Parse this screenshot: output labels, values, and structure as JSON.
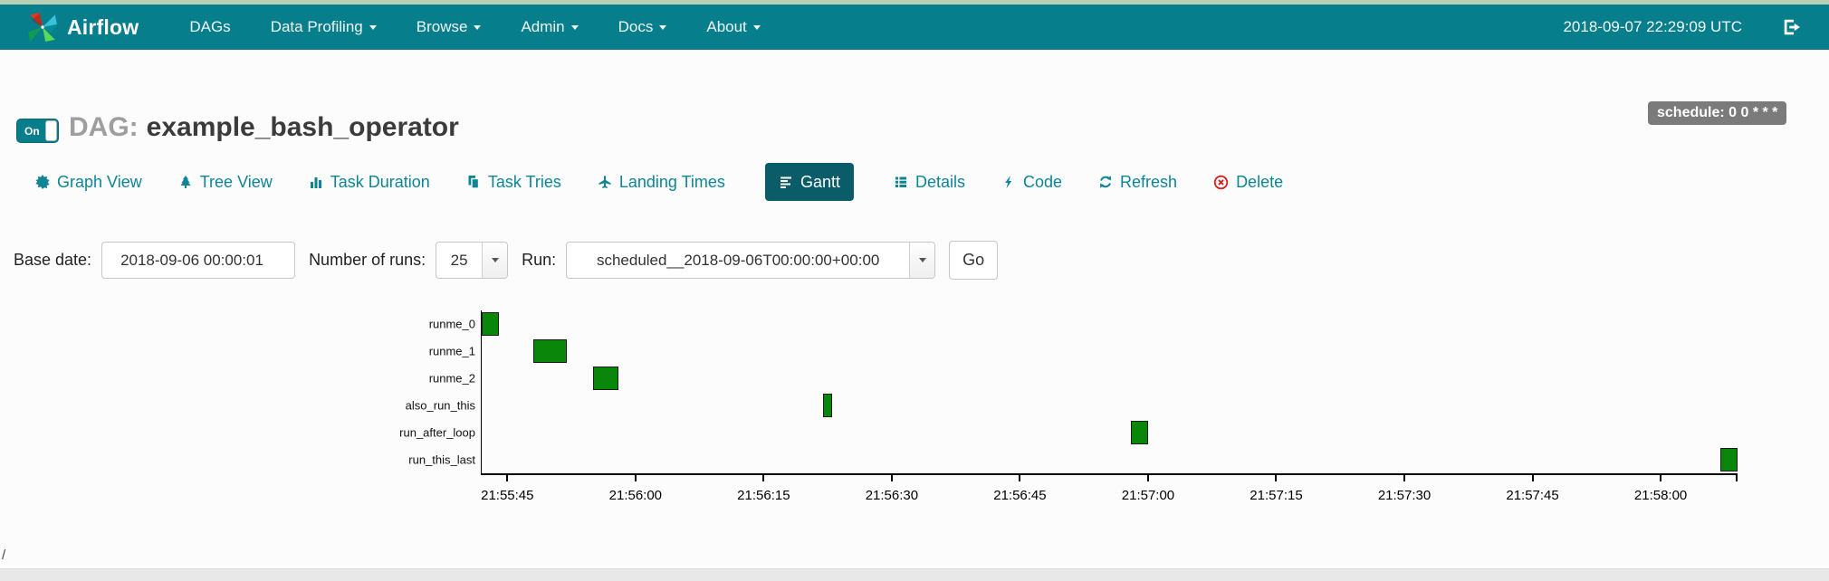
{
  "navbar": {
    "brand": "Airflow",
    "items": [
      {
        "label": "DAGs",
        "caret": false
      },
      {
        "label": "Data Profiling",
        "caret": true
      },
      {
        "label": "Browse",
        "caret": true
      },
      {
        "label": "Admin",
        "caret": true
      },
      {
        "label": "Docs",
        "caret": true
      },
      {
        "label": "About",
        "caret": true
      }
    ],
    "clock": "2018-09-07 22:29:09 UTC",
    "logout_icon": "logout-icon",
    "background_color": "#077e8b"
  },
  "header": {
    "toggle_label": "On",
    "toggle_state": "on",
    "dag_prefix": "DAG:",
    "dag_name": "example_bash_operator",
    "schedule_badge": "schedule: 0 0 * * *"
  },
  "tabs": [
    {
      "label": "Graph View",
      "icon": "graph-view-icon",
      "active": false
    },
    {
      "label": "Tree View",
      "icon": "tree-view-icon",
      "active": false
    },
    {
      "label": "Task Duration",
      "icon": "task-duration-icon",
      "active": false
    },
    {
      "label": "Task Tries",
      "icon": "task-tries-icon",
      "active": false
    },
    {
      "label": "Landing Times",
      "icon": "landing-times-icon",
      "active": false
    },
    {
      "label": "Gantt",
      "icon": "gantt-icon",
      "active": true
    },
    {
      "label": "Details",
      "icon": "details-icon",
      "active": false
    },
    {
      "label": "Code",
      "icon": "code-icon",
      "active": false
    },
    {
      "label": "Refresh",
      "icon": "refresh-icon",
      "active": false
    },
    {
      "label": "Delete",
      "icon": "delete-icon",
      "active": false
    }
  ],
  "form": {
    "base_date_label": "Base date:",
    "base_date_value": "2018-09-06 00:00:01",
    "num_runs_label": "Number of runs:",
    "num_runs_value": "25",
    "run_label": "Run:",
    "run_value": "scheduled__2018-09-06T00:00:00+00:00",
    "go_label": "Go"
  },
  "chart_data": {
    "type": "gantt",
    "title": "",
    "x_axis": {
      "start": "21:55:42",
      "end": "21:58:09",
      "ticks": [
        "21:55:45",
        "21:56:00",
        "21:56:15",
        "21:56:30",
        "21:56:45",
        "21:57:00",
        "21:57:15",
        "21:57:30",
        "21:57:45",
        "21:58:00"
      ],
      "end_tick": true
    },
    "bar_color": "#0a860a",
    "status": "success",
    "tasks": [
      {
        "name": "runme_0",
        "start": "21:55:42",
        "end": "21:55:44"
      },
      {
        "name": "runme_1",
        "start": "21:55:48",
        "end": "21:55:52"
      },
      {
        "name": "runme_2",
        "start": "21:55:55",
        "end": "21:55:58"
      },
      {
        "name": "also_run_this",
        "start": "21:56:22",
        "end": "21:56:23"
      },
      {
        "name": "run_after_loop",
        "start": "21:56:58",
        "end": "21:57:00"
      },
      {
        "name": "run_this_last",
        "start": "21:58:07",
        "end": "21:58:09"
      }
    ]
  },
  "footer": {
    "path_text": "/"
  }
}
